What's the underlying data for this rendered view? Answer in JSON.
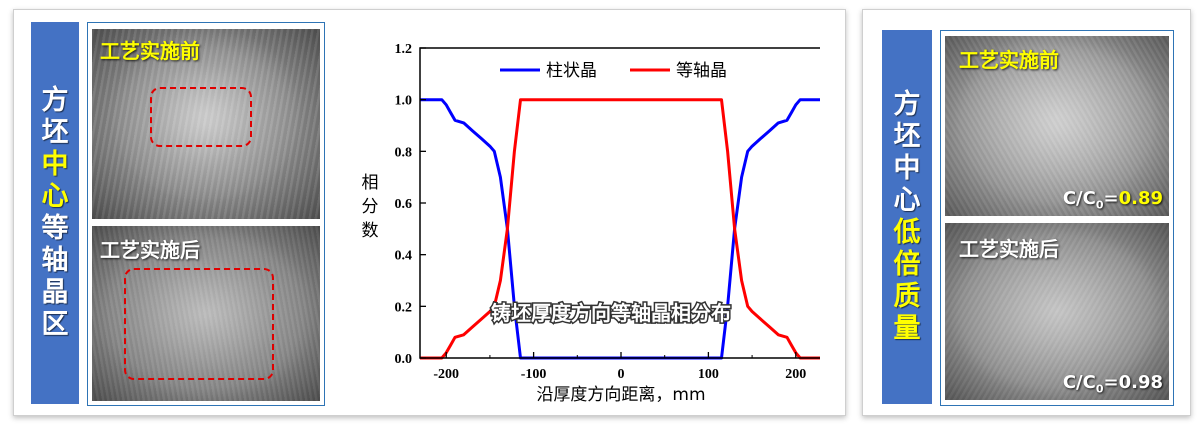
{
  "left": {
    "vertical_label": [
      "方",
      "坯",
      "中",
      "心",
      "等",
      "轴",
      "晶",
      "区"
    ],
    "vertical_label_yellow_index": [
      2,
      3
    ],
    "photo_before_title": "工艺实施前",
    "photo_after_title": "工艺实施后"
  },
  "right": {
    "vertical_label": [
      "方",
      "坯",
      "中",
      "心",
      "低",
      "倍",
      "质",
      "量"
    ],
    "vertical_label_yellow_index": [
      4,
      5,
      6,
      7
    ],
    "photo_before_title": "工艺实施前",
    "photo_after_title": "工艺实施后",
    "before_ratio_label": "C/C",
    "before_ratio_sub": "0",
    "before_ratio_eq": "=",
    "before_ratio_value": "0.89",
    "after_ratio_label": "C/C",
    "after_ratio_sub": "0",
    "after_ratio_eq": "=",
    "after_ratio_value": "0.98"
  },
  "colors": {
    "label_bg": "#4472c4",
    "highlight": "#ffff00",
    "columnar": "#0000ff",
    "equiaxed": "#ff0000",
    "dashed_zone": "#e00000"
  },
  "chart_data": {
    "type": "line",
    "title": "铸坯厚度方向等轴晶相分布",
    "xlabel": "沿厚度方向距离，mm",
    "ylabel": "相分数",
    "xlim": [
      -230,
      230
    ],
    "ylim": [
      0,
      1.2
    ],
    "xticks": [
      -200,
      -100,
      0,
      100,
      200
    ],
    "yticks": [
      0.0,
      0.2,
      0.4,
      0.6,
      0.8,
      1.0,
      1.2
    ],
    "legend_position": "top",
    "series": [
      {
        "name": "柱状晶",
        "color": "#0000ff",
        "x": [
          -230,
          -205,
          -200,
          -195,
          -190,
          -180,
          -170,
          -160,
          -150,
          -145,
          -138,
          -130,
          -122,
          -115,
          -110,
          -100,
          0,
          100,
          110,
          115,
          122,
          130,
          138,
          145,
          150,
          160,
          170,
          180,
          190,
          195,
          200,
          205,
          230
        ],
        "y": [
          1.0,
          1.0,
          0.98,
          0.95,
          0.92,
          0.91,
          0.88,
          0.85,
          0.82,
          0.8,
          0.7,
          0.5,
          0.2,
          0.0,
          0.0,
          0.0,
          0.0,
          0.0,
          0.0,
          0.0,
          0.2,
          0.5,
          0.7,
          0.8,
          0.82,
          0.85,
          0.88,
          0.91,
          0.92,
          0.95,
          0.98,
          1.0,
          1.0
        ]
      },
      {
        "name": "等轴晶",
        "color": "#ff0000",
        "x": [
          -230,
          -210,
          -205,
          -200,
          -195,
          -190,
          -180,
          -170,
          -160,
          -150,
          -145,
          -138,
          -130,
          -122,
          -115,
          -100,
          0,
          100,
          115,
          122,
          130,
          138,
          145,
          150,
          160,
          170,
          180,
          190,
          195,
          200,
          205,
          210,
          230
        ],
        "y": [
          0.0,
          0.0,
          0.0,
          0.02,
          0.05,
          0.08,
          0.09,
          0.12,
          0.15,
          0.18,
          0.2,
          0.3,
          0.5,
          0.8,
          1.0,
          1.0,
          1.0,
          1.0,
          1.0,
          0.8,
          0.5,
          0.3,
          0.2,
          0.18,
          0.15,
          0.12,
          0.09,
          0.08,
          0.05,
          0.02,
          0.0,
          0.0,
          0.0
        ]
      }
    ]
  }
}
